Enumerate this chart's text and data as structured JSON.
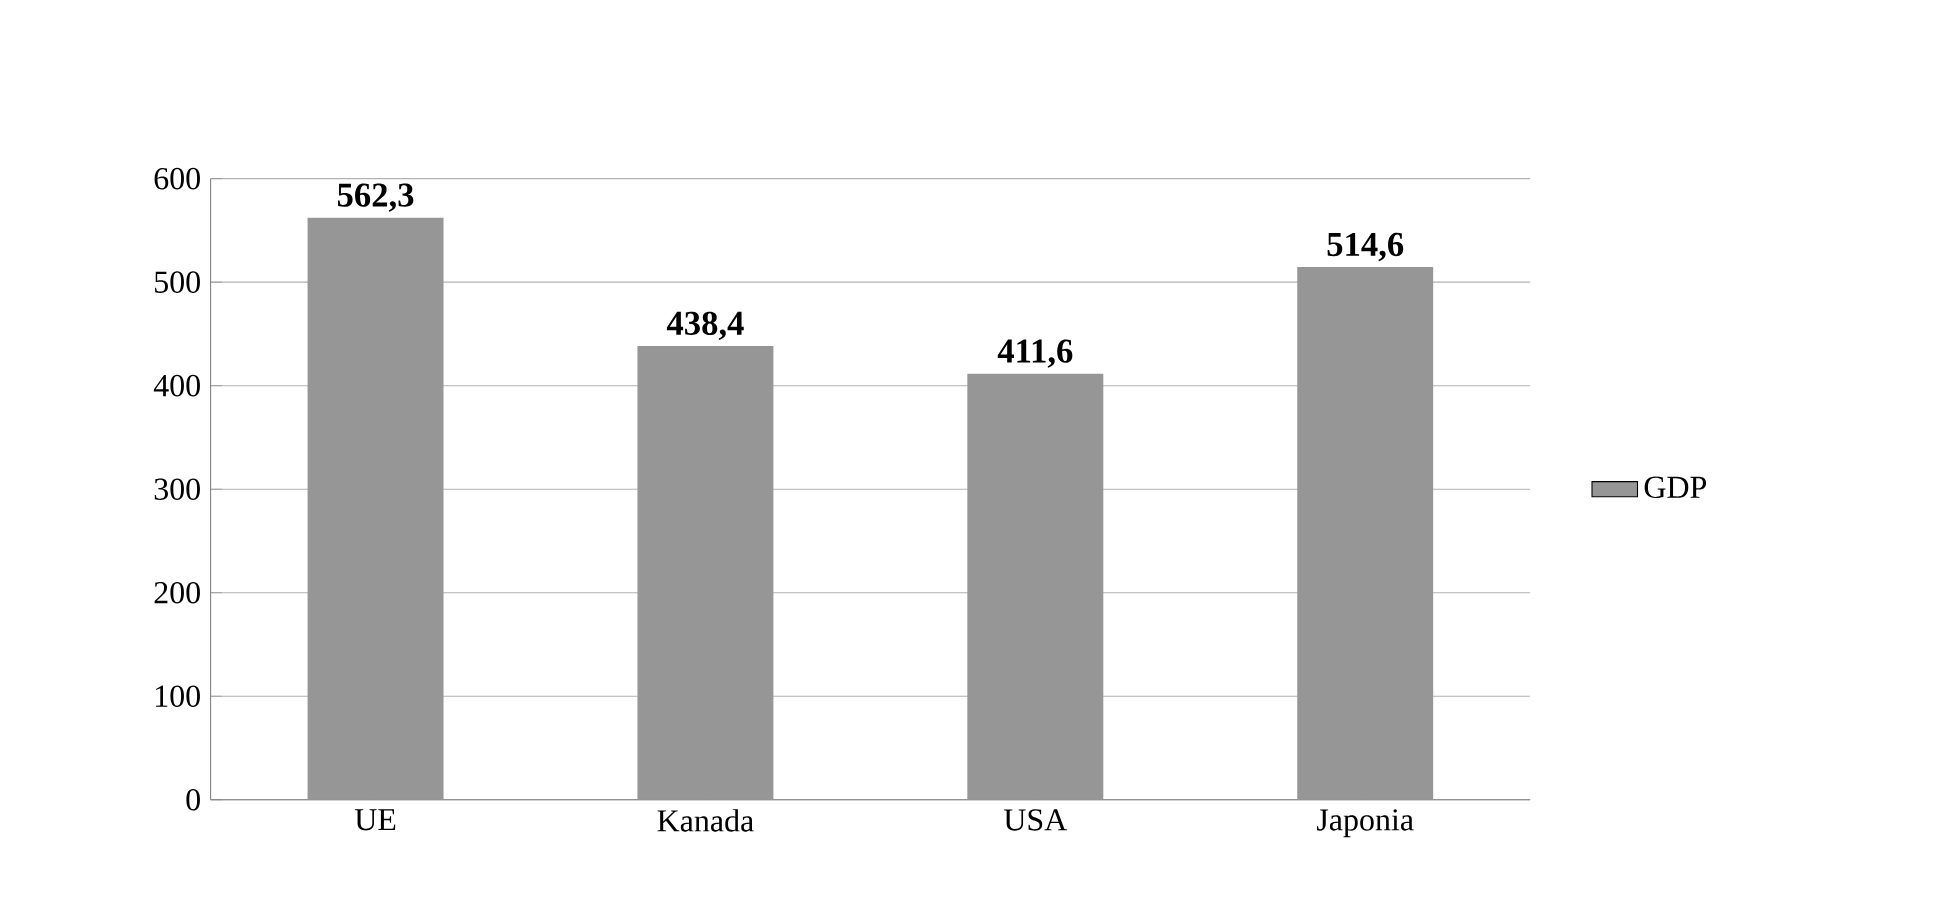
{
  "chart_data": {
    "type": "bar",
    "categories": [
      "UE",
      "Kanada",
      "USA",
      "Japonia"
    ],
    "series": [
      {
        "name": "GDP",
        "color": "#969696",
        "values": [
          562.3,
          438.4,
          411.6,
          514.6
        ]
      }
    ],
    "value_labels": [
      "562,3",
      "438,4",
      "411,6",
      "514,6"
    ],
    "ylim": [
      0,
      600
    ],
    "yticks": [
      0,
      100,
      200,
      300,
      400,
      500,
      600
    ],
    "grid": "y",
    "legend": "right"
  }
}
